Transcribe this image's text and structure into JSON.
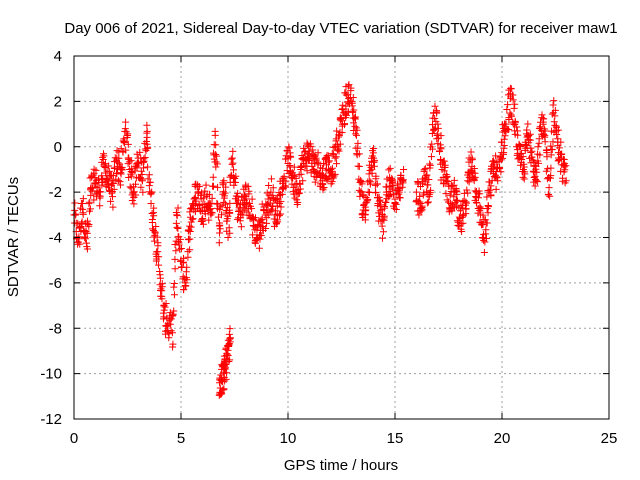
{
  "chart_data": {
    "type": "scatter",
    "title": "Day 006 of 2021, Sidereal Day-to-day VTEC variation (SDTVAR) for receiver maw1",
    "xlabel": "GPS time / hours",
    "ylabel": "SDTVAR / TECUs",
    "xlim": [
      0,
      25
    ],
    "ylim": [
      -12,
      4
    ],
    "xticks": [
      "0",
      "5",
      "10",
      "15",
      "20",
      "25"
    ],
    "yticks": [
      "4",
      "2",
      "0",
      "-2",
      "-4",
      "-6",
      "-8",
      "-10",
      "-12"
    ],
    "grid": true,
    "marker": "+",
    "color": "#ff0000",
    "series": [
      {
        "name": "SDTVAR",
        "segments": [
          {
            "x": [
              0.0,
              0.2,
              0.4,
              0.6,
              0.8,
              1.0,
              1.2,
              1.4,
              1.6,
              1.8,
              2.0,
              2.2,
              2.4,
              2.6,
              2.8,
              3.0,
              3.2,
              3.4,
              3.6,
              3.8,
              4.0,
              4.2,
              4.4,
              4.6,
              4.8,
              5.0,
              5.2,
              5.4,
              5.6,
              5.8,
              6.0,
              6.2,
              6.4,
              6.6,
              6.8,
              7.0,
              7.2,
              7.4,
              7.6,
              7.8,
              8.0,
              8.2,
              8.4,
              8.6,
              8.8,
              9.0,
              9.2,
              9.4,
              9.6,
              9.8,
              10.0,
              10.2,
              10.4,
              10.6,
              10.8,
              11.0,
              11.2,
              11.4,
              11.6,
              11.8,
              12.0,
              12.2,
              12.4,
              12.6,
              12.8,
              13.0,
              13.2,
              13.4,
              13.6,
              13.8,
              14.0,
              14.2,
              14.4,
              14.6,
              14.8,
              15.0,
              15.2,
              15.4
            ],
            "y": [
              -3.0,
              -4.2,
              -2.5,
              -4.4,
              -1.8,
              -1.6,
              -2.0,
              -0.8,
              -1.5,
              -2.2,
              -0.5,
              -1.2,
              0.8,
              -1.0,
              -2.0,
              -0.5,
              -1.5,
              0.6,
              -2.5,
              -3.8,
              -5.5,
              -7.5,
              -7.8,
              -8.2,
              -3.0,
              -5.0,
              -6.0,
              -3.5,
              -2.5,
              -2.0,
              -2.8,
              -2.2,
              -3.0,
              0.5,
              -3.8,
              -1.5,
              -4.0,
              -0.5,
              -2.5,
              -3.0,
              -2.2,
              -2.5,
              -3.5,
              -4.0,
              -3.2,
              -2.8,
              -2.0,
              -3.0,
              -2.5,
              -1.5,
              -0.5,
              -1.2,
              -2.0,
              -1.0,
              -0.5,
              -0.2,
              -1.0,
              -0.8,
              -1.5,
              -0.8,
              -1.0,
              -0.5,
              0.5,
              1.5,
              2.3,
              1.8,
              0.5,
              -2.0,
              -3.0,
              -1.5,
              -0.5,
              -2.5,
              -3.5,
              -2.0,
              -1.5,
              -2.5,
              -2.0,
              -1.0
            ]
          },
          {
            "x": [
              6.8,
              6.9,
              7.0,
              7.1,
              7.2,
              7.3
            ],
            "y": [
              -10.4,
              -10.2,
              -10.0,
              -9.6,
              -9.2,
              -8.6
            ]
          },
          {
            "x": [
              16.0,
              16.2,
              16.4,
              16.6,
              16.8,
              17.0,
              17.2,
              17.4,
              17.6,
              17.8,
              18.0,
              18.2,
              18.4,
              18.6,
              18.8,
              19.0,
              19.2,
              19.4,
              19.6,
              19.8,
              20.0,
              20.2,
              20.4,
              20.6,
              20.8,
              21.0,
              21.2,
              21.4,
              21.6,
              21.8,
              22.0,
              22.2,
              22.4,
              22.6,
              22.8,
              23.0
            ],
            "y": [
              -2.0,
              -2.5,
              -1.5,
              -2.2,
              1.5,
              1.0,
              -1.0,
              -1.5,
              -2.5,
              -2.0,
              -3.5,
              -3.0,
              -1.5,
              -0.5,
              -2.0,
              -3.0,
              -4.2,
              -2.0,
              -0.8,
              -1.5,
              0.2,
              0.8,
              2.2,
              1.0,
              -0.5,
              -1.0,
              0.5,
              -0.2,
              -1.5,
              0.8,
              0.5,
              -1.8,
              1.5,
              0.2,
              -0.8,
              -1.5
            ]
          }
        ]
      }
    ]
  }
}
